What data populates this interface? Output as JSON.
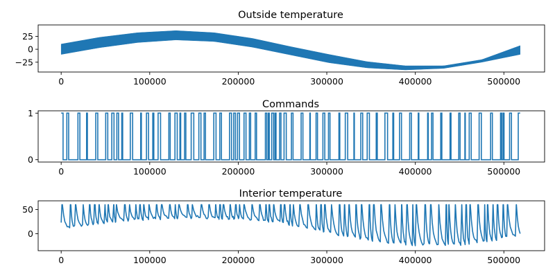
{
  "chart_data": [
    {
      "type": "area",
      "title": "Outside temperature",
      "xlabel": "",
      "ylabel": "",
      "xlim": [
        -26000,
        546000
      ],
      "ylim": [
        -44,
        47
      ],
      "xticks": [
        0,
        100000,
        200000,
        300000,
        400000,
        500000
      ],
      "xtick_labels": [
        "0",
        "100000",
        "200000",
        "300000",
        "400000",
        "500000"
      ],
      "yticks": [
        25,
        0,
        -25
      ],
      "ytick_labels": [
        "25",
        "0",
        "−25"
      ],
      "series_color": "#1f77b4",
      "band": {
        "description_of_shape": "sinusoid band",
        "x": [
          0,
          43200,
          86400,
          129600,
          172800,
          216000,
          259200,
          302400,
          345600,
          388800,
          432000,
          475200,
          518400
        ],
        "upper": [
          10,
          23,
          32,
          36,
          32,
          21,
          5,
          -10,
          -24,
          -32,
          -32,
          -20,
          7
        ],
        "lower": [
          -10,
          3,
          13,
          18,
          15,
          4,
          -11,
          -26,
          -36,
          -40,
          -37,
          -25,
          -10
        ]
      }
    },
    {
      "type": "line",
      "title": "Commands",
      "xlabel": "",
      "ylabel": "",
      "xlim": [
        -26000,
        546000
      ],
      "ylim": [
        -0.05,
        1.05
      ],
      "xticks": [
        0,
        100000,
        200000,
        300000,
        400000,
        500000
      ],
      "xtick_labels": [
        "0",
        "100000",
        "200000",
        "300000",
        "400000",
        "500000"
      ],
      "yticks": [
        1,
        0
      ],
      "ytick_labels": [
        "1",
        "0"
      ],
      "series_color": "#1f77b4",
      "x_range": [
        0,
        518400
      ],
      "values_range": [
        0,
        1
      ]
    },
    {
      "type": "line",
      "title": "Interior temperature",
      "xlabel": "",
      "ylabel": "",
      "xlim": [
        -26000,
        546000
      ],
      "ylim": [
        -35,
        68
      ],
      "xticks": [
        0,
        100000,
        200000,
        300000,
        400000,
        500000
      ],
      "xtick_labels": [
        "0",
        "100000",
        "200000",
        "300000",
        "400000",
        "500000"
      ],
      "yticks": [
        50,
        0
      ],
      "ytick_labels": [
        "50",
        "0"
      ],
      "series_color": "#1f77b4",
      "x_range": [
        0,
        518400
      ],
      "max_value": 60,
      "baseline": {
        "x": [
          0,
          50000,
          100000,
          150000,
          200000,
          250000,
          300000,
          350000,
          400000,
          450000,
          500000,
          518400
        ],
        "y": [
          8,
          22,
          30,
          32,
          30,
          22,
          0,
          -18,
          -27,
          -25,
          -12,
          -5
        ]
      }
    }
  ]
}
